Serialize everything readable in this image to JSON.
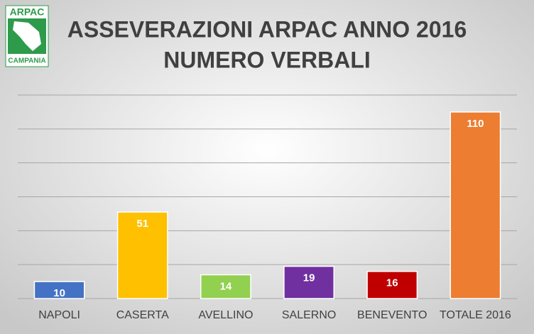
{
  "logo": {
    "top": "ARPAC",
    "bottom": "CAMPANIA"
  },
  "chart_data": {
    "type": "bar",
    "title": "ASSEVERAZIONI ARPAC ANNO 2016",
    "subtitle": "NUMERO VERBALI",
    "categories": [
      "NAPOLI",
      "CASERTA",
      "AVELLINO",
      "SALERNO",
      "BENEVENTO",
      "TOTALE 2016"
    ],
    "values": [
      10,
      51,
      14,
      19,
      16,
      110
    ],
    "colors": [
      "#4472c4",
      "#ffc000",
      "#92d050",
      "#7030a0",
      "#c00000",
      "#ed7d31"
    ],
    "ylim": [
      0,
      120
    ],
    "yticks": [
      0,
      20,
      40,
      60,
      80,
      100,
      120
    ],
    "grid": true
  }
}
